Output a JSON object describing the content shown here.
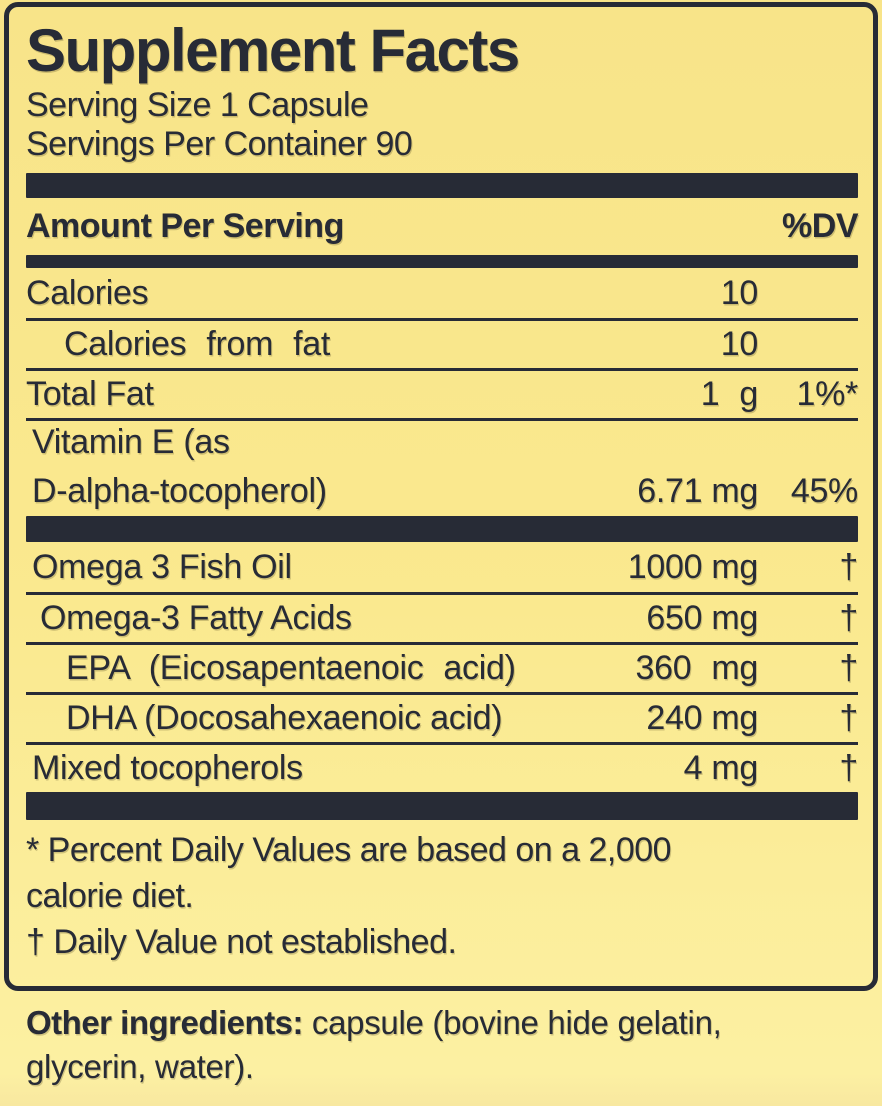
{
  "colors": {
    "background": "#fae98f",
    "ink": "#272b36"
  },
  "panel": {
    "title": "Supplement Facts",
    "serving_size": "Serving Size 1 Capsule",
    "servings_per_container": "Servings Per Container 90",
    "columns": {
      "amount_header": "Amount Per Serving",
      "dv_header": "%DV"
    },
    "rows": [
      {
        "name": "Calories",
        "amount": "10",
        "dv": ""
      },
      {
        "name": "Calories from fat",
        "amount": "10",
        "dv": ""
      },
      {
        "name": "Total Fat",
        "amount": "1 g",
        "dv": "1%*"
      },
      {
        "name_line1": "Vitamin E (as",
        "name_line2": "D-alpha-tocopherol)",
        "amount": "6.71 mg",
        "dv": "45%"
      },
      {
        "name": "Omega 3 Fish Oil",
        "amount": "1000 mg",
        "dv": "†"
      },
      {
        "name": "Omega-3 Fatty Acids",
        "amount": "650 mg",
        "dv": "†"
      },
      {
        "name": "EPA (Eicosapentaenoic acid)",
        "amount": "360 mg",
        "dv": "†"
      },
      {
        "name": "DHA (Docosahexaenoic acid)",
        "amount": "240 mg",
        "dv": "†"
      },
      {
        "name": "Mixed tocopherols",
        "amount": "4 mg",
        "dv": "†"
      }
    ],
    "footnotes": {
      "percent_line1": "* Percent Daily Values are based on a 2,000",
      "percent_line2": "calorie diet.",
      "dagger_note": "† Daily Value not established."
    }
  },
  "other_ingredients": {
    "label": "Other ingredients:",
    "line1_rest": " capsule (bovine hide gelatin,",
    "line2": "glycerin, water)."
  }
}
